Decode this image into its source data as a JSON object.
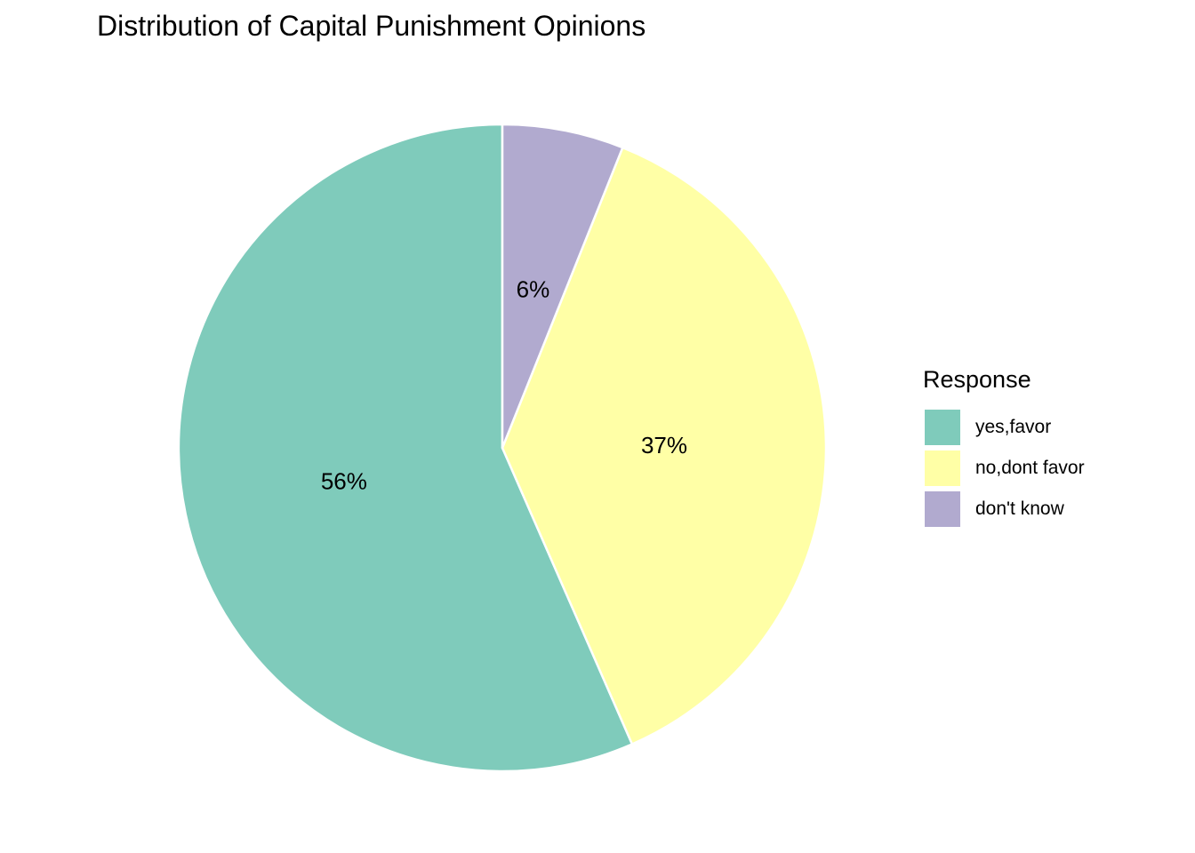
{
  "chart_data": {
    "type": "pie",
    "title": "Distribution of Capital Punishment Opinions",
    "legend_title": "Response",
    "legend_position": "right",
    "start": "top",
    "direction": "counterclockwise",
    "slices": [
      {
        "label": "yes,favor",
        "value": 56,
        "display": "56%",
        "color": "#7FCBBB"
      },
      {
        "label": "no,dont favor",
        "value": 37,
        "display": "37%",
        "color": "#FFFFA6"
      },
      {
        "label": "don't know",
        "value": 6,
        "display": "6%",
        "color": "#B1AACF"
      }
    ]
  }
}
